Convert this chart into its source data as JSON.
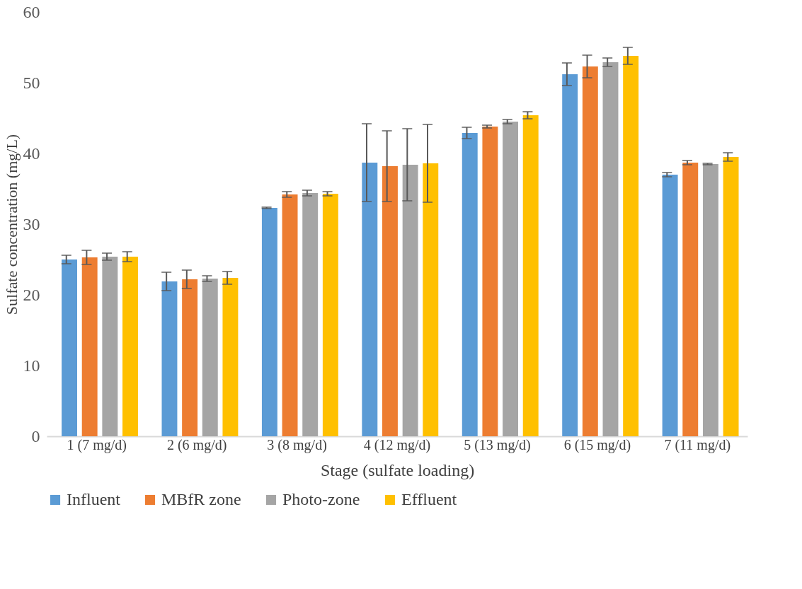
{
  "chart_data": {
    "type": "bar",
    "xlabel": "Stage (sulfate loading)",
    "ylabel": "Sulfate concentration (mg/L)",
    "categories": [
      "1 (7 mg/d)",
      "2 (6 mg/d)",
      "3 (8 mg/d)",
      "4 (12 mg/d)",
      "5 (13 mg/d)",
      "6 (15 mg/d)",
      "7 (11 mg/d)"
    ],
    "series": [
      {
        "name": "Influent",
        "color": "#5b9bd5",
        "values": [
          25.0,
          21.9,
          32.3,
          38.7,
          42.9,
          51.2,
          37.0
        ],
        "errors": [
          0.6,
          1.3,
          0.1,
          5.5,
          0.8,
          1.6,
          0.3
        ]
      },
      {
        "name": "MBfR zone",
        "color": "#ed7d31",
        "values": [
          25.3,
          22.2,
          34.2,
          38.2,
          43.8,
          52.3,
          38.7
        ],
        "errors": [
          1.0,
          1.3,
          0.4,
          5.0,
          0.2,
          1.6,
          0.3
        ]
      },
      {
        "name": "Photo-zone",
        "color": "#a5a5a5",
        "values": [
          25.4,
          22.3,
          34.4,
          38.4,
          44.5,
          52.9,
          38.5
        ],
        "errors": [
          0.5,
          0.4,
          0.4,
          5.1,
          0.3,
          0.6,
          0.1
        ]
      },
      {
        "name": "Effluent",
        "color": "#ffc000",
        "values": [
          25.4,
          22.4,
          34.3,
          38.6,
          45.4,
          53.8,
          39.5
        ],
        "errors": [
          0.7,
          0.9,
          0.3,
          5.5,
          0.5,
          1.2,
          0.6
        ]
      }
    ],
    "ylim": [
      0,
      60
    ],
    "yticks": [
      0,
      10,
      20,
      30,
      40,
      50,
      60
    ],
    "grid": false,
    "legend": "bottom"
  }
}
